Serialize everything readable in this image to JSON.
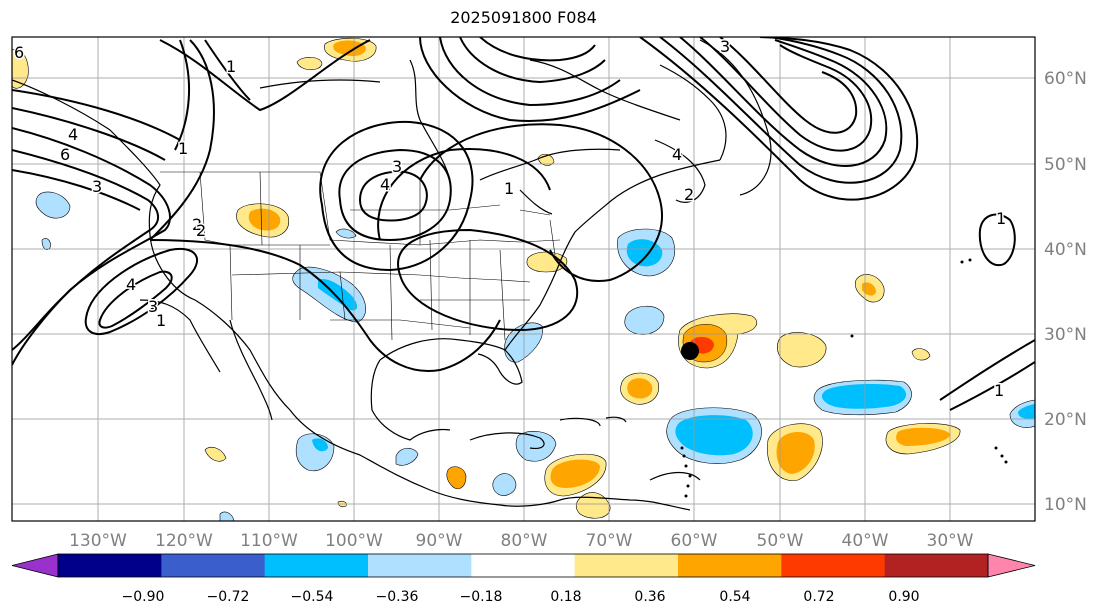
{
  "title": "2025091800 F084",
  "lon_labels": [
    "130°W",
    "120°W",
    "110°W",
    "100°W",
    "90°W",
    "80°W",
    "70°W",
    "60°W",
    "50°W",
    "40°W",
    "30°W"
  ],
  "lat_labels": [
    "60°N",
    "50°N",
    "40°N",
    "30°N",
    "20°N",
    "10°N"
  ],
  "colorbar": {
    "tick_labels": [
      "−0.90",
      "−0.72",
      "−0.54",
      "−0.36",
      "−0.18",
      "0.18",
      "0.36",
      "0.54",
      "0.72",
      "0.90"
    ],
    "colors": [
      "#9932cc",
      "#00008b",
      "#3a5fcd",
      "#00bfff",
      "#b0e0ff",
      "#ffffff",
      "#ffe98a",
      "#ffa500",
      "#ff3a00",
      "#b22222",
      "#ff85ad"
    ]
  },
  "contour_labels": [
    "6",
    "4",
    "3",
    "2",
    "1",
    "6",
    "4",
    "3",
    "2",
    "1",
    "1",
    "1",
    "3",
    "4",
    "2",
    "1",
    "4",
    "3",
    "1"
  ],
  "storm_marker": {
    "name": "tropical system position",
    "lat": 28.2,
    "lon": -60.5
  }
}
